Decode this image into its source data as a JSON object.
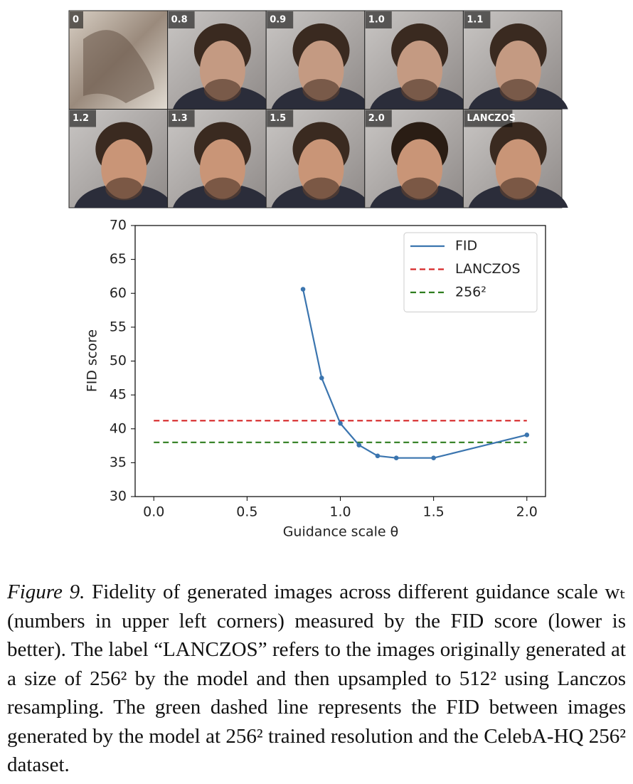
{
  "images": [
    {
      "label": "0"
    },
    {
      "label": "0.8"
    },
    {
      "label": "0.9"
    },
    {
      "label": "1.0"
    },
    {
      "label": "1.1"
    },
    {
      "label": "1.2"
    },
    {
      "label": "1.3"
    },
    {
      "label": "1.5"
    },
    {
      "label": "2.0"
    },
    {
      "label": "LANCZOS"
    }
  ],
  "chart_data": {
    "type": "line",
    "x_label": "Guidance scale θ",
    "y_label": "FID score",
    "x": [
      0.8,
      0.9,
      1.0,
      1.1,
      1.2,
      1.3,
      1.5,
      2.0
    ],
    "series": [
      {
        "name": "FID",
        "color": "#3b75af",
        "values": [
          60.6,
          47.5,
          40.8,
          37.6,
          36.0,
          35.7,
          35.7,
          39.1
        ]
      }
    ],
    "reference_lines": [
      {
        "name": "LANCZOS",
        "color": "#d62728",
        "value": 41.2
      },
      {
        "name": "256²",
        "color": "#2e7d1e",
        "value": 38.0
      }
    ],
    "xlim": [
      -0.1,
      2.1
    ],
    "ylim": [
      30,
      70
    ],
    "xticks": [
      {
        "value": 0,
        "label": "0.0"
      },
      {
        "value": 0.5,
        "label": "0.5"
      },
      {
        "value": 1,
        "label": "1.0"
      },
      {
        "value": 1.5,
        "label": "1.5"
      },
      {
        "value": 2,
        "label": "2.0"
      }
    ],
    "yticks": [
      30,
      35,
      40,
      45,
      50,
      55,
      60,
      65,
      70
    ],
    "legend": "upper right",
    "grid": false
  },
  "caption": {
    "label": "Figure 9.",
    "text": "Fidelity of generated images across different guidance scale wₜ (numbers in upper left corners) measured by the FID score (lower is better). The label “LANCZOS” refers to the images originally generated at a size of 256² by the model and then upsampled to 512² using Lanczos resampling. The green dashed line represents the FID between images generated by the model at 256² trained resolution and the CelebA-HQ 256² dataset."
  }
}
